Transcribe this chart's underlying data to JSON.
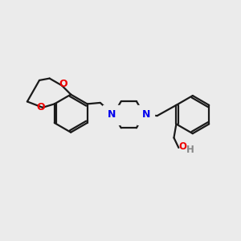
{
  "background_color": "#ebebeb",
  "bond_color": "#1a1a1a",
  "N_color": "#0000ee",
  "O_color": "#ee0000",
  "OH_O_color": "#ee0000",
  "OH_H_color": "#888888",
  "line_width": 1.6,
  "figsize": [
    3.0,
    3.0
  ],
  "dpi": 100,
  "xlim": [
    0,
    10
  ],
  "ylim": [
    0,
    10
  ]
}
